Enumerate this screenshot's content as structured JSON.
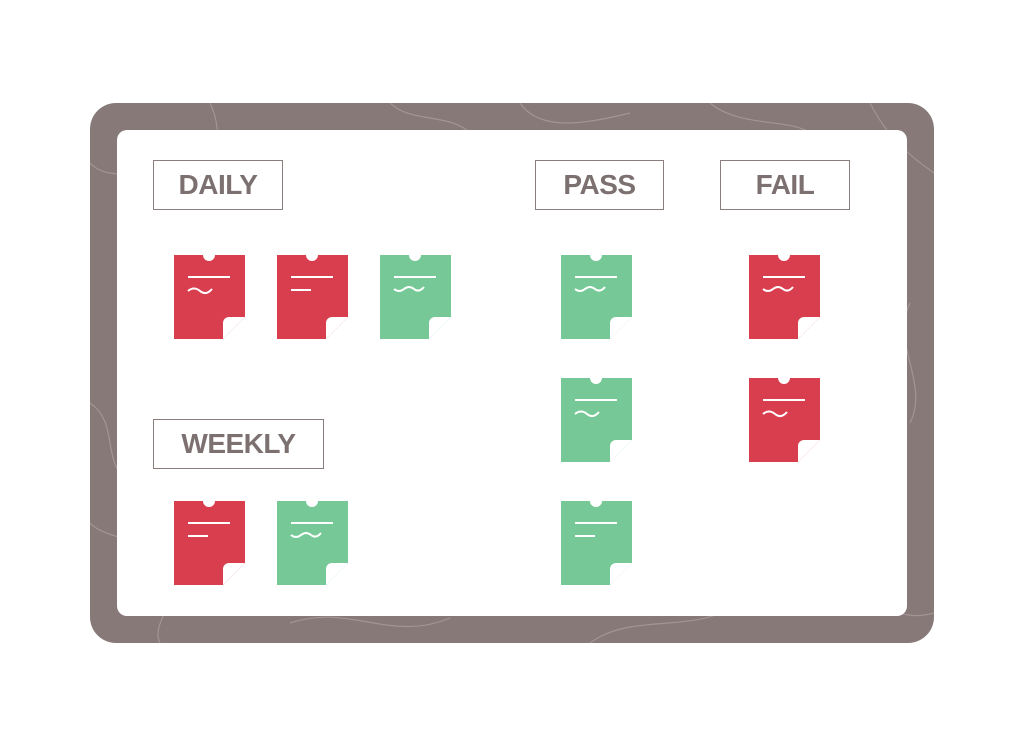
{
  "colors": {
    "board_frame": "#867977",
    "board_surface": "#ffffff",
    "label_text": "#7c7170",
    "note_red": "#d93e4f",
    "note_green": "#76c996",
    "texture_line": "#a89d9b"
  },
  "sections": {
    "daily": {
      "label": "DAILY",
      "notes": [
        "red",
        "red",
        "green"
      ]
    },
    "weekly": {
      "label": "WEEKLY",
      "notes": [
        "red",
        "green"
      ]
    },
    "pass": {
      "label": "PASS",
      "notes": [
        "green",
        "green",
        "green"
      ]
    },
    "fail": {
      "label": "FAIL",
      "notes": [
        "red",
        "red"
      ]
    }
  },
  "icons": {
    "note": "sticky-note-icon"
  }
}
